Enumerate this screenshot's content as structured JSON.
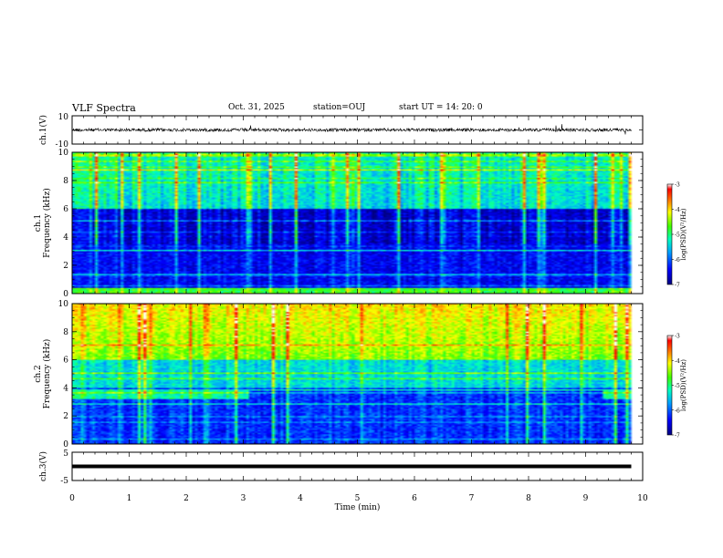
{
  "header": {
    "title": "VLF Spectra",
    "date": "Oct. 31, 2025",
    "station": "station=OUJ",
    "start": "start  UT =   14: 20: 0"
  },
  "chart_data": [
    {
      "type": "line",
      "name": "ch1-waveform",
      "ylabel": "ch.1(V)",
      "ylim": [
        -10,
        10
      ],
      "ytick_labels": [
        "10",
        "-10"
      ],
      "baseline": 0,
      "xlim": [
        0,
        10
      ]
    },
    {
      "type": "heatmap",
      "name": "ch1-spectrogram",
      "ylabel": "ch.1\nFrequency (kHz)",
      "ylim": [
        0,
        10
      ],
      "yticks": [
        0,
        2,
        4,
        6,
        8,
        10
      ],
      "xlim": [
        0,
        10
      ],
      "data_end_min": 9.8,
      "colorbar": {
        "label": "log(PSD)(V²/Hz)",
        "range": [
          -7,
          -3
        ],
        "ticks": [
          -7,
          -6,
          -5,
          -4,
          -3
        ]
      },
      "features": {
        "quiet_band_khz": [
          3.5,
          6.0
        ],
        "upper_band_khz": [
          6.0,
          10.0
        ]
      }
    },
    {
      "type": "heatmap",
      "name": "ch2-spectrogram",
      "ylabel": "ch.2\nFrequency (kHz)",
      "ylim": [
        0,
        10
      ],
      "yticks": [
        0,
        2,
        4,
        6,
        8,
        10
      ],
      "xlim": [
        0,
        10
      ],
      "data_end_min": 9.8,
      "colorbar": {
        "label": "log(PSD)(V²/Hz)",
        "range": [
          -7,
          -3
        ],
        "ticks": [
          -7,
          -6,
          -5,
          -4,
          -3
        ]
      },
      "features": {
        "band_khz": [
          3.2,
          3.8
        ],
        "band_end_min": 3.1,
        "band_resume_min": 9.3
      }
    },
    {
      "type": "line",
      "name": "ch3-waveform",
      "ylabel": "ch.3(V)",
      "ylim": [
        -5,
        5
      ],
      "ytick_labels": [
        "5",
        "-5"
      ],
      "constant_value": 0,
      "xlim": [
        0,
        10
      ],
      "xlabel": "Time  (min)",
      "xticks": [
        0,
        1,
        2,
        3,
        4,
        5,
        6,
        7,
        8,
        9,
        10
      ]
    }
  ]
}
